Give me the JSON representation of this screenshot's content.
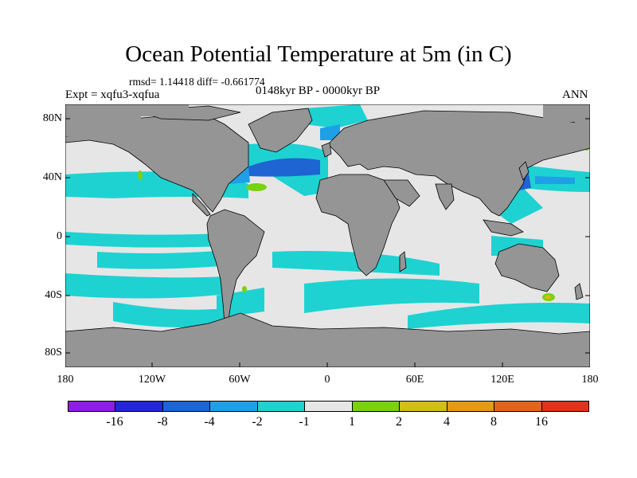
{
  "title": "Ocean Potential Temperature at 5m (in C)",
  "stats": "rmsd= 1.14418 diff= -0.661774",
  "expt": "Expt = xqfu3-xqfua",
  "period": "0148kyr BP - 0000kyr BP",
  "season": "ANN",
  "lat_labels": [
    "80N",
    "40N",
    "0",
    "40S",
    "80S"
  ],
  "lon_labels": [
    "180",
    "120W",
    "60W",
    "0",
    "60E",
    "120E",
    "180"
  ],
  "legend": {
    "colors": [
      "#8c1ee6",
      "#2626d9",
      "#1e64d2",
      "#1fa0e6",
      "#1ed2d2",
      "#e6e6e6",
      "#78d20f",
      "#d2be14",
      "#e19b14",
      "#e1641e",
      "#e1321e"
    ],
    "labels": [
      "-16",
      "-8",
      "-4",
      "-2",
      "-1",
      "1",
      "2",
      "4",
      "8",
      "16"
    ]
  },
  "colors": {
    "land": "#959595",
    "ocean_neutral": "#e6e6e6"
  }
}
